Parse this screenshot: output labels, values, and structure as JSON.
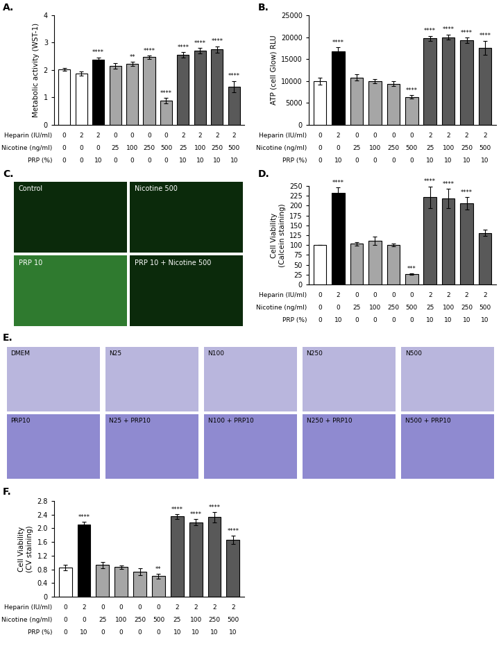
{
  "chart_data": [
    {
      "type": "bar",
      "label": "A.",
      "y_label": "Metabolic activity (WST-1)",
      "values": [
        2.02,
        1.87,
        2.38,
        2.15,
        2.22,
        2.47,
        0.88,
        2.55,
        2.7,
        2.75,
        1.4
      ],
      "errors": [
        0.05,
        0.07,
        0.08,
        0.1,
        0.08,
        0.06,
        0.1,
        0.1,
        0.1,
        0.12,
        0.2
      ],
      "significance": [
        null,
        null,
        "****",
        null,
        "**",
        "****",
        "****",
        "****",
        "****",
        "****",
        "****"
      ],
      "colors": [
        "#ffffff",
        "#ffffff",
        "#000000",
        "#a6a6a6",
        "#a6a6a6",
        "#a6a6a6",
        "#a6a6a6",
        "#595959",
        "#595959",
        "#595959",
        "#595959"
      ],
      "ylim": [
        0,
        4
      ],
      "yticks": [
        0,
        1,
        2,
        3,
        4
      ],
      "condition_rows": [
        {
          "name": "Heparin (IU/ml)",
          "values": [
            0,
            2,
            2,
            0,
            0,
            0,
            0,
            2,
            2,
            2,
            2
          ]
        },
        {
          "name": "Nicotine (ng/ml)",
          "values": [
            0,
            0,
            0,
            25,
            100,
            250,
            500,
            25,
            100,
            250,
            500
          ]
        },
        {
          "name": "PRP (%)",
          "values": [
            0,
            0,
            10,
            0,
            0,
            0,
            0,
            10,
            10,
            10,
            10
          ]
        }
      ]
    },
    {
      "type": "bar",
      "label": "B.",
      "y_label": "ATP (cell Glow) RLU",
      "values": [
        9950,
        16800,
        10800,
        10000,
        9400,
        6400,
        19700,
        20000,
        19300,
        17600
      ],
      "errors": [
        800,
        900,
        700,
        500,
        600,
        400,
        600,
        600,
        600,
        1600
      ],
      "significance": [
        null,
        "****",
        null,
        null,
        null,
        "****",
        "****",
        "****",
        "****",
        "****"
      ],
      "colors": [
        "#ffffff",
        "#000000",
        "#a6a6a6",
        "#a6a6a6",
        "#a6a6a6",
        "#a6a6a6",
        "#595959",
        "#595959",
        "#595959",
        "#595959"
      ],
      "ylim": [
        0,
        25000
      ],
      "yticks": [
        0,
        5000,
        10000,
        15000,
        20000,
        25000
      ],
      "condition_rows": [
        {
          "name": "Heparin (IU/ml)",
          "values": [
            0,
            2,
            0,
            0,
            0,
            0,
            2,
            2,
            2,
            2
          ]
        },
        {
          "name": "Nicotine (ng/ml)",
          "values": [
            0,
            0,
            25,
            100,
            250,
            500,
            25,
            100,
            250,
            500
          ]
        },
        {
          "name": "PRP (%)",
          "values": [
            0,
            10,
            0,
            0,
            0,
            0,
            10,
            10,
            10,
            10
          ]
        }
      ]
    },
    {
      "type": "image",
      "label": "C.",
      "panels": [
        "Control",
        "Nicotine 500",
        "PRP 10",
        "PRP 10 + Nicotine 500"
      ]
    },
    {
      "type": "bar",
      "label": "D.",
      "y_label": "Cell Viability\n(Calcein staining)",
      "values": [
        100,
        232,
        103,
        111,
        100,
        26,
        221,
        218,
        206,
        131
      ],
      "errors": [
        0,
        15,
        5,
        10,
        4,
        2,
        28,
        25,
        15,
        8
      ],
      "significance": [
        null,
        "****",
        null,
        null,
        null,
        "***",
        "****",
        "****",
        "****",
        null
      ],
      "colors": [
        "#ffffff",
        "#000000",
        "#a6a6a6",
        "#a6a6a6",
        "#a6a6a6",
        "#a6a6a6",
        "#595959",
        "#595959",
        "#595959",
        "#595959"
      ],
      "ylim": [
        0,
        250
      ],
      "yticks": [
        0,
        25,
        50,
        75,
        100,
        125,
        150,
        175,
        200,
        225,
        250
      ],
      "condition_rows": [
        {
          "name": "Heparin (IU/ml)",
          "values": [
            0,
            2,
            0,
            0,
            0,
            0,
            2,
            2,
            2,
            2
          ]
        },
        {
          "name": "Nicotine (ng/ml)",
          "values": [
            0,
            0,
            25,
            100,
            250,
            500,
            25,
            100,
            250,
            500
          ]
        },
        {
          "name": "PRP (%)",
          "values": [
            0,
            10,
            0,
            0,
            0,
            0,
            10,
            10,
            10,
            10
          ]
        }
      ]
    },
    {
      "type": "image",
      "label": "E.",
      "panels": [
        "DMEM",
        "N25",
        "N100",
        "N250",
        "N500",
        "PRP10",
        "N25 + PRP10",
        "N100 + PRP10",
        "N250 + PRP10",
        "N500 + PRP10"
      ]
    },
    {
      "type": "bar",
      "label": "F.",
      "y_label": "Cell Viability\n(CV staining)",
      "values": [
        0.85,
        2.12,
        0.93,
        0.87,
        0.73,
        0.6,
        2.35,
        2.18,
        2.33,
        1.67
      ],
      "errors": [
        0.08,
        0.07,
        0.09,
        0.05,
        0.1,
        0.07,
        0.07,
        0.1,
        0.15,
        0.12
      ],
      "significance": [
        null,
        "****",
        null,
        null,
        null,
        "**",
        "****",
        "****",
        "****",
        "****"
      ],
      "colors": [
        "#ffffff",
        "#000000",
        "#a6a6a6",
        "#a6a6a6",
        "#a6a6a6",
        "#a6a6a6",
        "#595959",
        "#595959",
        "#595959",
        "#595959"
      ],
      "ylim": [
        0,
        2.8
      ],
      "yticks": [
        0,
        0.4,
        0.8,
        1.2,
        1.6,
        {
          "value": 2,
          "label": "2.0"
        },
        2.4,
        2.8
      ],
      "condition_rows": [
        {
          "name": "Heparin (IU/ml)",
          "values": [
            0,
            2,
            0,
            0,
            0,
            0,
            2,
            2,
            2,
            2
          ]
        },
        {
          "name": "Nicotine (ng/ml)",
          "values": [
            0,
            0,
            25,
            100,
            250,
            500,
            25,
            100,
            250,
            500
          ]
        },
        {
          "name": "PRP (%)",
          "values": [
            0,
            10,
            0,
            0,
            0,
            0,
            10,
            10,
            10,
            10
          ]
        }
      ]
    }
  ]
}
